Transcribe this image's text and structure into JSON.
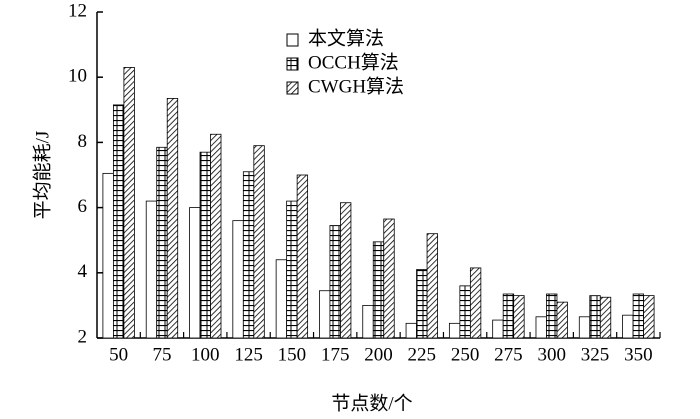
{
  "chart_data": {
    "type": "bar",
    "x_label": "节点数/个",
    "y_label": "平均能耗/J",
    "categories": [
      "50",
      "75",
      "100",
      "125",
      "150",
      "175",
      "200",
      "225",
      "250",
      "275",
      "300",
      "325",
      "350"
    ],
    "series": [
      {
        "name": "本文算法",
        "pattern": "none",
        "values": [
          7.05,
          6.2,
          6.0,
          5.6,
          4.4,
          3.45,
          3.0,
          2.45,
          2.45,
          2.55,
          2.65,
          2.65,
          2.7
        ]
      },
      {
        "name": "OCCH算法",
        "pattern": "grid",
        "values": [
          9.15,
          7.85,
          7.7,
          7.1,
          6.2,
          5.45,
          4.95,
          4.1,
          3.6,
          3.35,
          3.35,
          3.3,
          3.35
        ]
      },
      {
        "name": "CWGH算法",
        "pattern": "hatch",
        "values": [
          10.3,
          9.35,
          8.25,
          7.9,
          7.0,
          6.15,
          5.65,
          5.2,
          4.15,
          3.3,
          3.1,
          3.25,
          3.3
        ]
      }
    ],
    "ylim": [
      2,
      12
    ],
    "yticks": [
      2,
      4,
      6,
      8,
      10,
      12
    ]
  }
}
